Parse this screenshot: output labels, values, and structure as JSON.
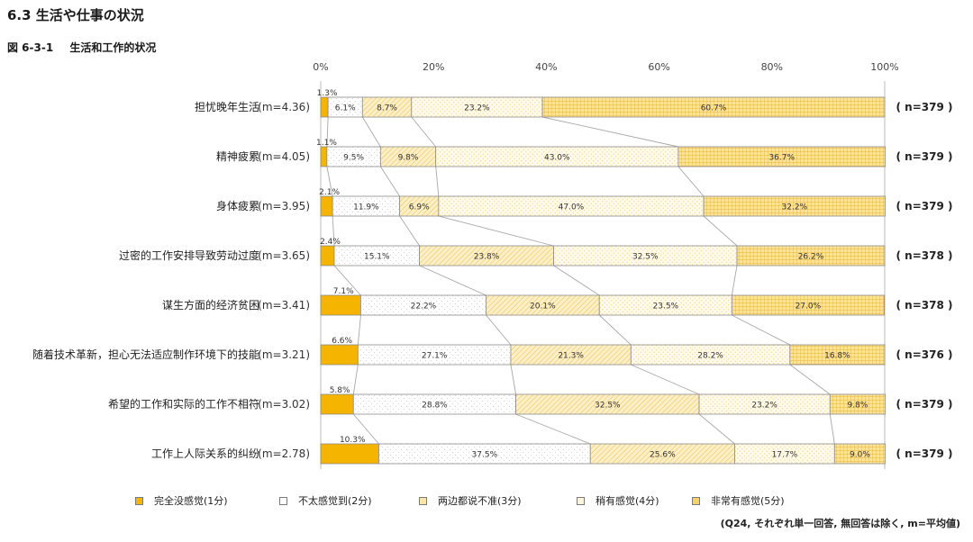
{
  "section_title": "6.3  生活や仕事の状況",
  "figure": {
    "number": "図 6-3-1",
    "title": "生活和工作的状况"
  },
  "footnote": "(Q24, それぞれ単一回答, 無回答は除く, m=平均値)",
  "colors": {
    "cat1": "#f5b400",
    "cat2": "#ffffff",
    "cat3": "#fbe6a8",
    "cat4": "#fdf5dc",
    "cat5": "#f7d16a",
    "border": "#8c8c8c",
    "connector": "#a8a8a8"
  },
  "chart_data": {
    "type": "bar",
    "orientation": "horizontal",
    "stacked": true,
    "xlim": [
      0,
      100
    ],
    "x_ticks": [
      "0%",
      "20%",
      "40%",
      "60%",
      "80%",
      "100%"
    ],
    "grid": false,
    "legend_position": "bottom",
    "categories": [
      {
        "label": "担忧晚年生活",
        "mean": "(m=4.36)",
        "n": "( n=379 )"
      },
      {
        "label": "精神疲累",
        "mean": "(m=4.05)",
        "n": "( n=379 )"
      },
      {
        "label": "身体疲累",
        "mean": "(m=3.95)",
        "n": "( n=379 )"
      },
      {
        "label": "过密的工作安排导致劳动过度",
        "mean": "(m=3.65)",
        "n": "( n=378 )"
      },
      {
        "label": "谋生方面的经济贫困",
        "mean": "(m=3.41)",
        "n": "( n=378 )"
      },
      {
        "label": "随着技术革新，担心无法适应制作环境下的技能",
        "mean": "(m=3.21)",
        "n": "( n=376 )"
      },
      {
        "label": "希望的工作和实际的工作不相符",
        "mean": "(m=3.02)",
        "n": "( n=379 )"
      },
      {
        "label": "工作上人际关系的纠纷",
        "mean": "(m=2.78)",
        "n": "( n=379 )"
      }
    ],
    "series": [
      {
        "name": "完全没感觉(1分)",
        "values": [
          1.3,
          1.1,
          2.1,
          2.4,
          7.1,
          6.6,
          5.8,
          10.3
        ],
        "labels": [
          "1.3%",
          "1.1%",
          "2.1%",
          "2.4%",
          "7.1%",
          "6.6%",
          "5.8%",
          "10.3%"
        ]
      },
      {
        "name": "不太感觉到(2分)",
        "values": [
          6.1,
          9.5,
          11.9,
          15.1,
          22.2,
          27.1,
          28.8,
          37.5
        ],
        "labels": [
          "6.1%",
          "9.5%",
          "11.9%",
          "15.1%",
          "22.2%",
          "27.1%",
          "28.8%",
          "37.5%"
        ]
      },
      {
        "name": "两边都说不准(3分)",
        "values": [
          8.7,
          9.8,
          6.9,
          23.8,
          20.1,
          21.3,
          32.5,
          25.6
        ],
        "labels": [
          "8.7%",
          "9.8%",
          "6.9%",
          "23.8%",
          "20.1%",
          "21.3%",
          "32.5%",
          "25.6%"
        ]
      },
      {
        "name": "稍有感觉(4分)",
        "values": [
          23.2,
          43.0,
          47.0,
          32.5,
          23.5,
          28.2,
          23.2,
          17.7
        ],
        "labels": [
          "23.2%",
          "43.0%",
          "47.0%",
          "32.5%",
          "23.5%",
          "28.2%",
          "23.2%",
          "17.7%"
        ]
      },
      {
        "name": "非常有感觉(5分)",
        "values": [
          60.7,
          36.7,
          32.2,
          26.2,
          27.0,
          16.8,
          9.8,
          9.0
        ],
        "labels": [
          "60.7%",
          "36.7%",
          "32.2%",
          "26.2%",
          "27.0%",
          "16.8%",
          "9.8%",
          "9.0%"
        ]
      }
    ]
  }
}
